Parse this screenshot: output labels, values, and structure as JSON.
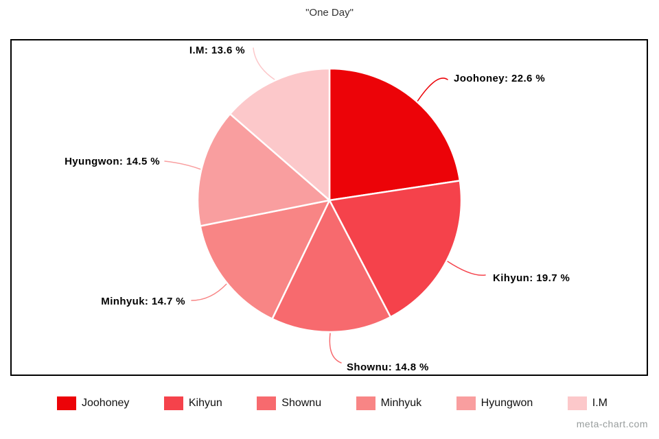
{
  "title": "\"One Day\"",
  "watermark": "meta-chart.com",
  "chart_data": {
    "type": "pie",
    "title": "\"One Day\"",
    "unit": "%",
    "start_angle_deg": 0,
    "direction": "clockwise",
    "legend_position": "bottom",
    "slices": [
      {
        "label": "Joohoney",
        "value": 22.6,
        "display": "Joohoney: 22.6 %",
        "color": "#EC0308"
      },
      {
        "label": "Kihyun",
        "value": 19.7,
        "display": "Kihyun: 19.7 %",
        "color": "#F5424B"
      },
      {
        "label": "Shownu",
        "value": 14.8,
        "display": "Shownu: 14.8 %",
        "color": "#F76A6E"
      },
      {
        "label": "Minhyuk",
        "value": 14.7,
        "display": "Minhyuk: 14.7 %",
        "color": "#F88585"
      },
      {
        "label": "Hyungwon",
        "value": 14.5,
        "display": "Hyungwon: 14.5 %",
        "color": "#F99E9F"
      },
      {
        "label": "I.M",
        "value": 13.6,
        "display": "I.M: 13.6 %",
        "color": "#FCC8CA"
      }
    ]
  }
}
